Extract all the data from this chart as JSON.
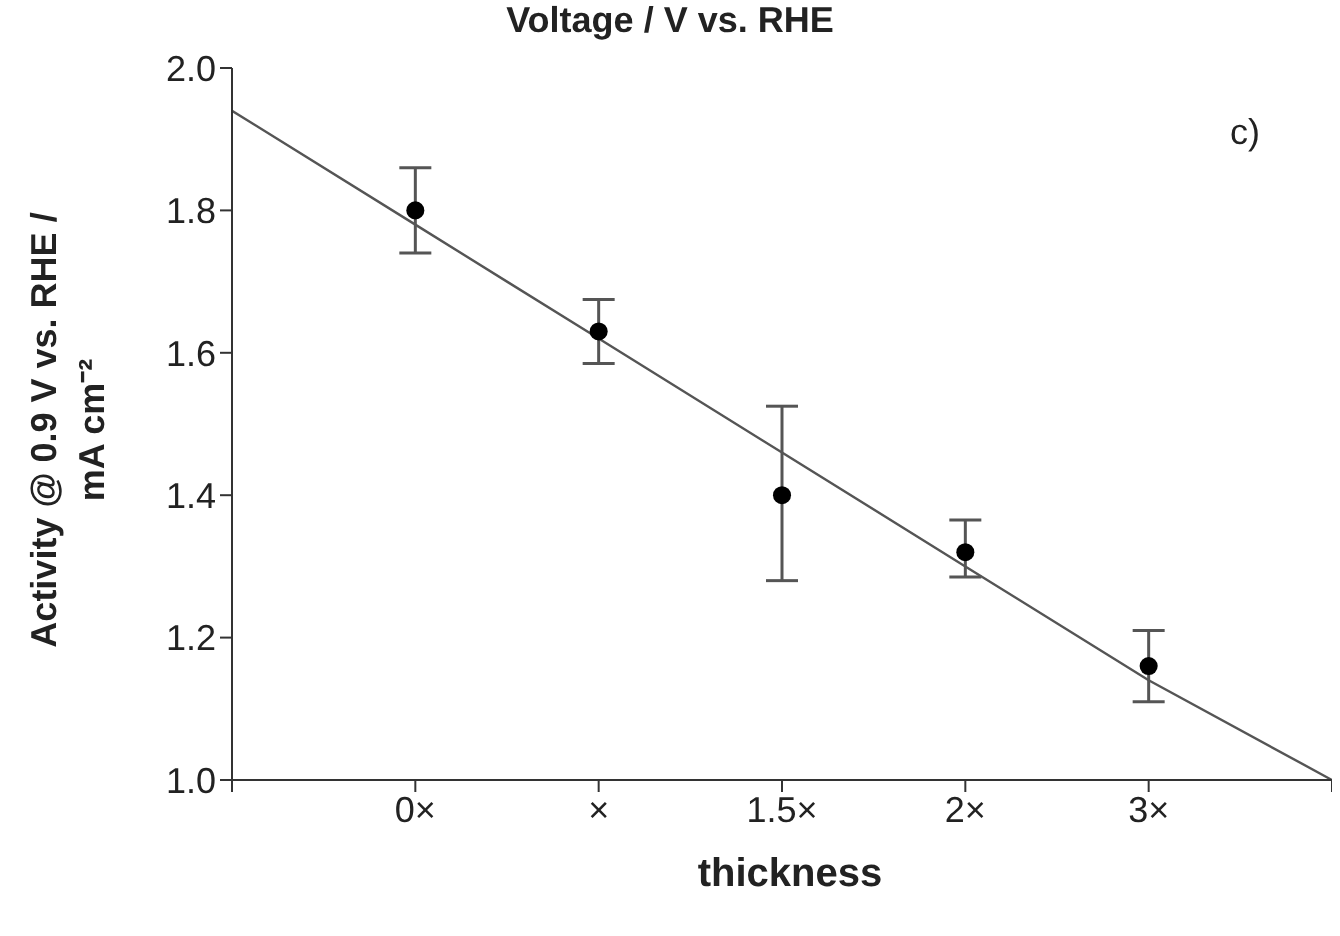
{
  "chart_data": {
    "type": "scatter",
    "title": "Voltage / V vs. RHE",
    "xlabel": "thickness",
    "ylabel": "Activity @ 0.9 V vs. RHE /\nmA cm⁻²",
    "annotations": [
      "c)"
    ],
    "categories": [
      null,
      "0×",
      "×",
      "1.5×",
      "2×",
      "3×",
      null
    ],
    "ylim": [
      1.0,
      2.0
    ],
    "yticks": [
      {
        "value": 1.0,
        "label": "1.0"
      },
      1.2,
      1.4,
      1.6,
      1.8,
      {
        "value": 2.0,
        "label": "2.0"
      }
    ],
    "grid": false,
    "legend": false,
    "marker": "circle",
    "series": [
      {
        "color": "#000000",
        "values": [
          null,
          1.8,
          1.63,
          1.4,
          1.32,
          1.16,
          null
        ],
        "errors": [
          null,
          [
            1.74,
            1.86
          ],
          [
            1.585,
            1.675
          ],
          [
            1.28,
            1.525
          ],
          [
            1.285,
            1.365
          ],
          [
            1.11,
            1.21
          ],
          null
        ]
      },
      {
        "type": "line",
        "color": "#555555",
        "values": [
          1.94,
          1.78,
          1.62,
          1.46,
          1.3,
          1.14,
          1.0
        ],
        "line_style": "solid",
        "marker": "none"
      }
    ]
  }
}
